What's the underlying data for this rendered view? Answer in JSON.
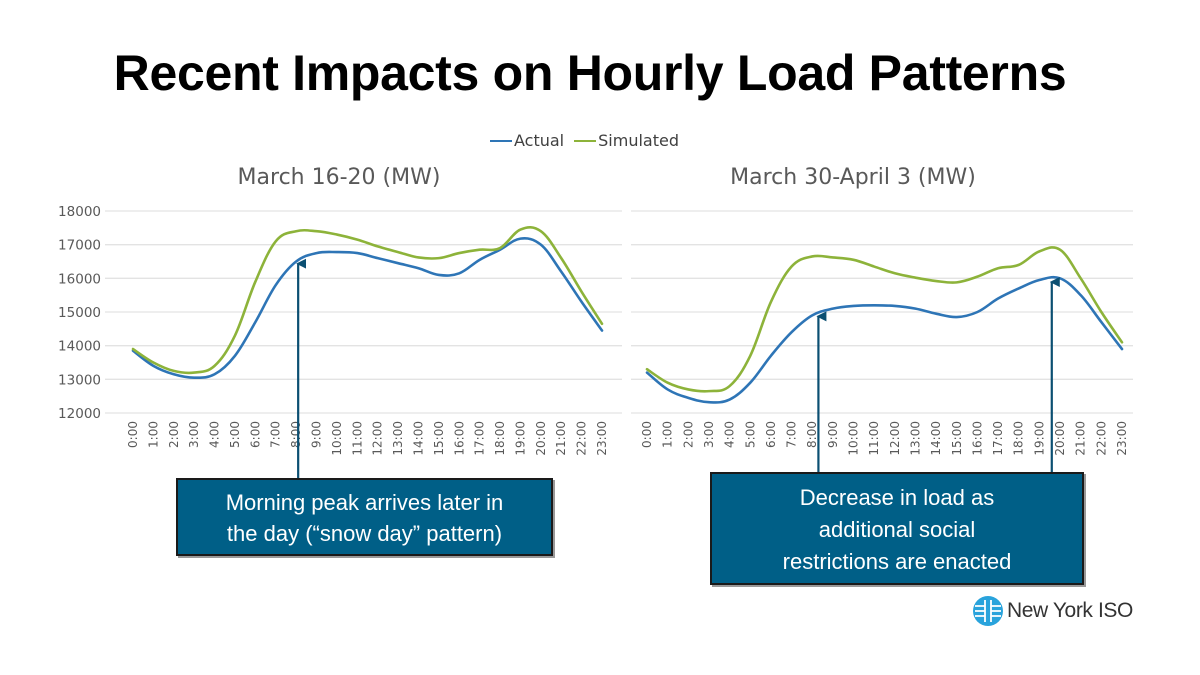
{
  "slide": {
    "title": "Recent Impacts on Hourly Load Patterns",
    "logo_text": "New York ISO",
    "logo_icon": "nyiso-globe-icon"
  },
  "legend": {
    "items": [
      {
        "label": "Actual",
        "color": "#2e75b6"
      },
      {
        "label": "Simulated",
        "color": "#8db33a"
      }
    ]
  },
  "callouts": {
    "left": {
      "lines": [
        "Morning peak arrives later in",
        "the day (“snow day” pattern)"
      ],
      "points_to_hour": [
        8.1
      ]
    },
    "right": {
      "lines": [
        "Decrease in load as",
        "additional social",
        "restrictions are enacted"
      ],
      "points_to_hour": [
        8.3,
        19.6
      ]
    },
    "bg_color": "#005f87",
    "arrow_color": "#0b4f72"
  },
  "chart_data": [
    {
      "type": "line",
      "title": "March 16-20 (MW)",
      "xlabel": "",
      "ylabel": "",
      "ylim": [
        12000,
        18000
      ],
      "yticks": [
        "18000",
        "17000",
        "16000",
        "15000",
        "14000",
        "13000",
        "12000"
      ],
      "show_ytick_labels": true,
      "grid": true,
      "legend": "top-center",
      "categories": [
        "0:00",
        "1:00",
        "2:00",
        "3:00",
        "4:00",
        "5:00",
        "6:00",
        "7:00",
        "8:00",
        "9:00",
        "10:00",
        "11:00",
        "12:00",
        "13:00",
        "14:00",
        "15:00",
        "16:00",
        "17:00",
        "18:00",
        "19:00",
        "20:00",
        "21:00",
        "22:00",
        "23:00"
      ],
      "series": [
        {
          "name": "Actual",
          "color": "#2e75b6",
          "values": [
            13850,
            13400,
            13150,
            13050,
            13150,
            13700,
            14700,
            15800,
            16500,
            16750,
            16780,
            16750,
            16600,
            16450,
            16300,
            16100,
            16150,
            16550,
            16850,
            17180,
            17000,
            16200,
            15300,
            14450
          ]
        },
        {
          "name": "Simulated",
          "color": "#8db33a",
          "values": [
            13900,
            13500,
            13250,
            13200,
            13400,
            14300,
            15900,
            17100,
            17400,
            17400,
            17300,
            17150,
            16950,
            16780,
            16620,
            16600,
            16750,
            16850,
            16900,
            17450,
            17400,
            16600,
            15600,
            14650
          ]
        }
      ]
    },
    {
      "type": "line",
      "title": "March 30-April 3 (MW)",
      "xlabel": "",
      "ylabel": "",
      "ylim": [
        12000,
        18000
      ],
      "yticks": [],
      "show_ytick_labels": false,
      "grid": true,
      "legend": "top-center",
      "categories": [
        "0:00",
        "1:00",
        "2:00",
        "3:00",
        "4:00",
        "5:00",
        "6:00",
        "7:00",
        "8:00",
        "9:00",
        "10:00",
        "11:00",
        "12:00",
        "13:00",
        "14:00",
        "15:00",
        "16:00",
        "17:00",
        "18:00",
        "19:00",
        "20:00",
        "21:00",
        "22:00",
        "23:00"
      ],
      "series": [
        {
          "name": "Actual",
          "color": "#2e75b6",
          "values": [
            13200,
            12700,
            12450,
            12320,
            12400,
            12900,
            13700,
            14400,
            14900,
            15100,
            15180,
            15200,
            15180,
            15100,
            14950,
            14850,
            15000,
            15400,
            15700,
            15950,
            16000,
            15500,
            14700,
            13900
          ]
        },
        {
          "name": "Simulated",
          "color": "#8db33a",
          "values": [
            13300,
            12900,
            12700,
            12650,
            12800,
            13700,
            15300,
            16350,
            16650,
            16620,
            16550,
            16350,
            16150,
            16020,
            15920,
            15880,
            16050,
            16300,
            16400,
            16800,
            16850,
            16000,
            15000,
            14100
          ]
        }
      ]
    }
  ]
}
